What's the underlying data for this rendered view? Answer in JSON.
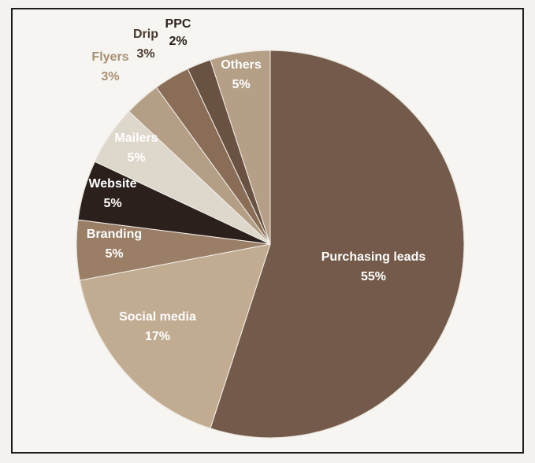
{
  "chart_data": {
    "type": "pie",
    "title": "",
    "slices": [
      {
        "label": "Purchasing leads",
        "value": 55,
        "value_label": "55%",
        "color": "#735a4a",
        "label_color": "#ffffff"
      },
      {
        "label": "Social media",
        "value": 17,
        "value_label": "17%",
        "color": "#c1ac92",
        "label_color": "#ffffff"
      },
      {
        "label": "Branding",
        "value": 5,
        "value_label": "5%",
        "color": "#9a7e66",
        "label_color": "#ffffff"
      },
      {
        "label": "Website",
        "value": 5,
        "value_label": "5%",
        "color": "#2b201c",
        "label_color": "#ffffff"
      },
      {
        "label": "Mailers",
        "value": 5,
        "value_label": "5%",
        "color": "#ded7cc",
        "label_color": "#ffffff"
      },
      {
        "label": "Flyers",
        "value": 3,
        "value_label": "3%",
        "color": "#b59e86",
        "label_color": "#a88f72"
      },
      {
        "label": "Drip",
        "value": 3,
        "value_label": "3%",
        "color": "#8a6d57",
        "label_color": "#4a3a2e"
      },
      {
        "label": "PPC",
        "value": 2,
        "value_label": "2%",
        "color": "#6a5242",
        "label_color": "#2a2019"
      },
      {
        "label": "Others",
        "value": 5,
        "value_label": "5%",
        "color": "#b59f86",
        "label_color": "#ffffff"
      }
    ],
    "start_angle_deg": 0,
    "direction": "clockwise",
    "legend": "none"
  }
}
